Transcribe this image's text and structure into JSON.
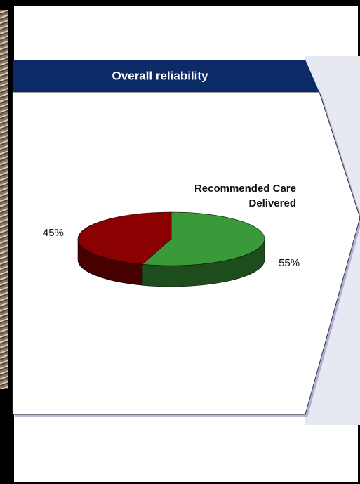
{
  "chart_data": {
    "type": "pie",
    "title": "Overall reliability",
    "annotation": "Recommended Care Delivered",
    "values": [
      55,
      45
    ],
    "value_labels": [
      "55%",
      "45%"
    ],
    "colors": [
      "#3a9a3a",
      "#8b0000"
    ]
  }
}
